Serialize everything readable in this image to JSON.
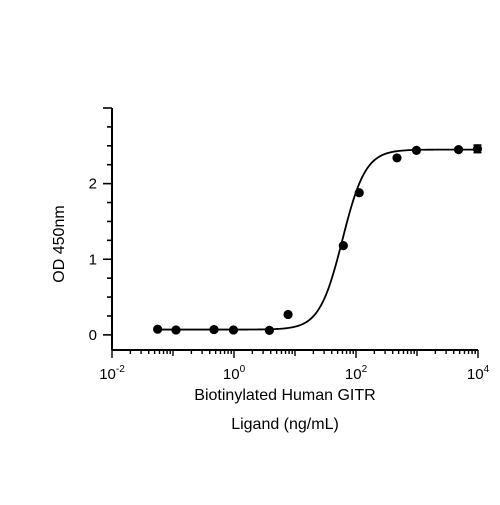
{
  "chart_data": {
    "type": "scatter",
    "title": "",
    "xlabel_lines": [
      "Biotinylated Human GITR",
      "Ligand (ng/mL)"
    ],
    "ylabel": "OD 450nm",
    "x_scale": "log10",
    "xlim": [
      0.01,
      10000
    ],
    "ylim": [
      -0.2,
      3.0
    ],
    "x_ticks": [
      {
        "value": 0.01,
        "base": "10",
        "exp": "-2"
      },
      {
        "value": 1,
        "base": "10",
        "exp": "0"
      },
      {
        "value": 100,
        "base": "10",
        "exp": "2"
      },
      {
        "value": 10000,
        "base": "10",
        "exp": "4"
      }
    ],
    "y_ticks": [
      {
        "value": 0,
        "label": "0"
      },
      {
        "value": 1,
        "label": "1"
      },
      {
        "value": 2,
        "label": "2"
      }
    ],
    "grid": false,
    "legend": "none",
    "series": [
      {
        "x": [
          0.056,
          0.112,
          0.47,
          0.98,
          3.8,
          7.7,
          62,
          113,
          470,
          980,
          4800,
          9800
        ],
        "y": [
          0.075,
          0.065,
          0.07,
          0.065,
          0.06,
          0.27,
          1.18,
          1.88,
          2.34,
          2.44,
          2.45,
          2.46
        ],
        "error": [
          0,
          0,
          0,
          0,
          0,
          0,
          0,
          0,
          0,
          0,
          0,
          0.05
        ]
      }
    ],
    "fit_curve": {
      "model": "4PL",
      "bottom": 0.07,
      "top": 2.45,
      "ec50": 60,
      "hill": 2.3
    },
    "colors": {
      "points": "#000000",
      "line": "#000000",
      "axes": "#000000"
    }
  }
}
